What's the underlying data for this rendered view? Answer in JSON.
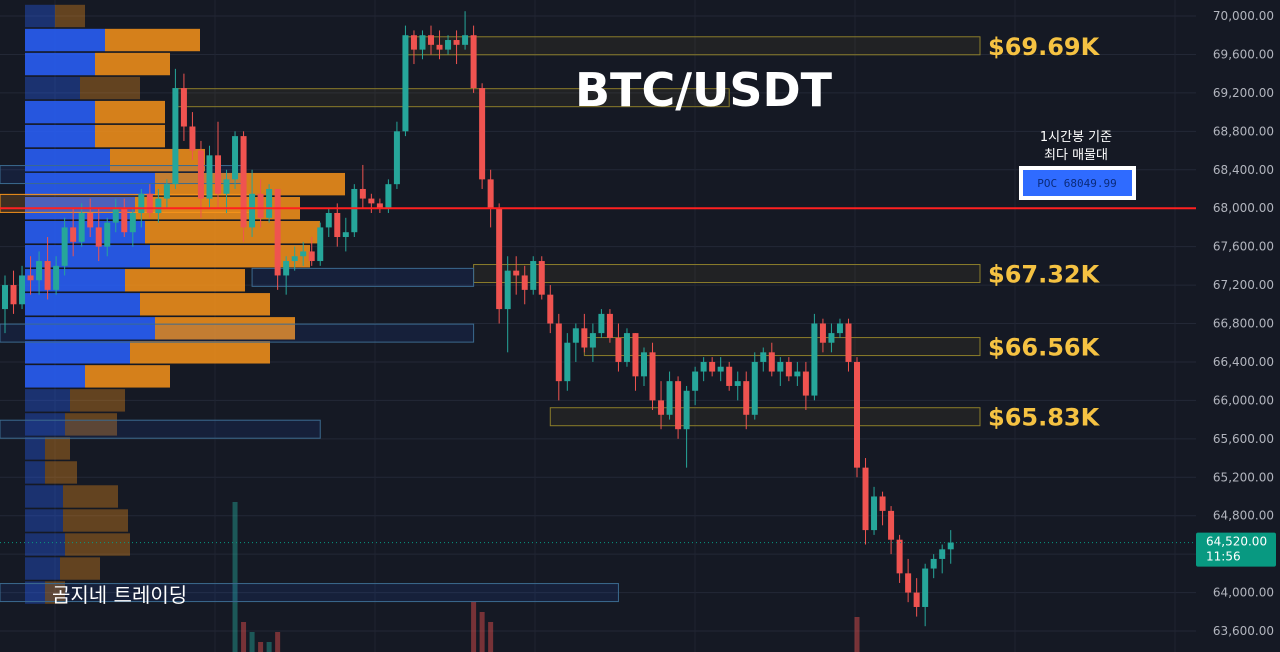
{
  "title": "BTC/USDT",
  "watermark": "곰지네 트레이딩",
  "poc": {
    "note_line1": "1시간봉 기준",
    "note_line2": "최다 매물대",
    "label": "POC  68049.99",
    "price": 68000,
    "line_color": "#ff2020"
  },
  "last_price": {
    "price": 64520,
    "label": "64,520.00",
    "countdown": "11:56",
    "color": "#089981"
  },
  "colors": {
    "background": "#151924",
    "up": "#26a69a",
    "down": "#ef5350",
    "zone_label": "#f5c242",
    "vp_buy": "#2962ff",
    "vp_sell": "#f7931a"
  },
  "zones": [
    {
      "label": "$69.69K",
      "price": 69690
    },
    {
      "label": "$67.32K",
      "price": 67320
    },
    {
      "label": "$66.56K",
      "price": 66560
    },
    {
      "label": "$65.83K",
      "price": 65830
    }
  ],
  "y_axis": {
    "ticks": [
      "70,000.00",
      "69,600.00",
      "69,200.00",
      "68,800.00",
      "68,400.00",
      "68,000.00",
      "67,600.00",
      "67,200.00",
      "66,800.00",
      "66,400.00",
      "66,000.00",
      "65,600.00",
      "65,200.00",
      "64,800.00",
      "64,400.00",
      "64,000.00",
      "63,600.00"
    ]
  },
  "chart_data": {
    "type": "candlestick",
    "title": "BTC/USDT",
    "timeframe": "1시간봉",
    "ylim": [
      63500,
      70150
    ],
    "y_ticks": [
      70000,
      69600,
      69200,
      68800,
      68400,
      68000,
      67600,
      67200,
      66800,
      66400,
      66000,
      65600,
      65200,
      64800,
      64400,
      64000,
      63600
    ],
    "candles": [
      [
        66950,
        67300,
        66700,
        67200
      ],
      [
        67200,
        67350,
        66900,
        67000
      ],
      [
        67000,
        67400,
        66950,
        67300
      ],
      [
        67300,
        67500,
        67100,
        67250
      ],
      [
        67250,
        67550,
        67100,
        67450
      ],
      [
        67450,
        67700,
        67050,
        67150
      ],
      [
        67150,
        67500,
        67100,
        67400
      ],
      [
        67400,
        67900,
        67300,
        67800
      ],
      [
        67800,
        68000,
        67500,
        67650
      ],
      [
        67650,
        68050,
        67600,
        67950
      ],
      [
        67950,
        68100,
        67700,
        67800
      ],
      [
        67800,
        68000,
        67450,
        67600
      ],
      [
        67600,
        67900,
        67500,
        67850
      ],
      [
        67850,
        68100,
        67750,
        68000
      ],
      [
        68000,
        68100,
        67700,
        67750
      ],
      [
        67750,
        68000,
        67600,
        67950
      ],
      [
        67950,
        68200,
        67800,
        68150
      ],
      [
        68150,
        68250,
        67900,
        67950
      ],
      [
        67950,
        68200,
        67850,
        68100
      ],
      [
        68100,
        68300,
        68000,
        68250
      ],
      [
        68250,
        69450,
        68200,
        69250
      ],
      [
        69250,
        69400,
        68700,
        68850
      ],
      [
        68850,
        69000,
        68500,
        68600
      ],
      [
        68600,
        68700,
        67900,
        68100
      ],
      [
        68100,
        68650,
        68000,
        68550
      ],
      [
        68550,
        68900,
        68000,
        68150
      ],
      [
        68150,
        68400,
        67950,
        68300
      ],
      [
        68300,
        68800,
        68200,
        68750
      ],
      [
        68750,
        68800,
        67650,
        67800
      ],
      [
        67800,
        68400,
        67700,
        68150
      ],
      [
        68150,
        68300,
        67800,
        67900
      ],
      [
        67900,
        68250,
        67850,
        68200
      ],
      [
        68200,
        68200,
        67150,
        67300
      ],
      [
        67300,
        67500,
        67100,
        67450
      ],
      [
        67450,
        67600,
        67350,
        67500
      ],
      [
        67500,
        67650,
        67400,
        67550
      ],
      [
        67550,
        67700,
        67400,
        67450
      ],
      [
        67450,
        67850,
        67400,
        67800
      ],
      [
        67800,
        68000,
        67700,
        67950
      ],
      [
        67950,
        68050,
        67600,
        67700
      ],
      [
        67700,
        67900,
        67550,
        67750
      ],
      [
        67750,
        68250,
        67700,
        68200
      ],
      [
        68200,
        68450,
        68000,
        68100
      ],
      [
        68100,
        68150,
        67950,
        68050
      ],
      [
        68050,
        68100,
        67950,
        68000
      ],
      [
        68000,
        68300,
        67950,
        68250
      ],
      [
        68250,
        68900,
        68200,
        68800
      ],
      [
        68800,
        69900,
        68750,
        69800
      ],
      [
        69800,
        69850,
        69500,
        69650
      ],
      [
        69650,
        69850,
        69550,
        69800
      ],
      [
        69800,
        69900,
        69600,
        69700
      ],
      [
        69700,
        69850,
        69550,
        69650
      ],
      [
        69650,
        69800,
        69600,
        69750
      ],
      [
        69750,
        69850,
        69500,
        69700
      ],
      [
        69700,
        70050,
        69650,
        69800
      ],
      [
        69800,
        69900,
        69200,
        69250
      ],
      [
        69250,
        69300,
        68200,
        68300
      ],
      [
        68300,
        68400,
        67800,
        68000
      ],
      [
        68000,
        68050,
        66800,
        66950
      ],
      [
        66950,
        67500,
        66500,
        67350
      ],
      [
        67350,
        67500,
        67100,
        67300
      ],
      [
        67300,
        67400,
        67000,
        67150
      ],
      [
        67150,
        67500,
        67100,
        67450
      ],
      [
        67450,
        67500,
        67050,
        67100
      ],
      [
        67100,
        67200,
        66700,
        66800
      ],
      [
        66800,
        66900,
        66000,
        66200
      ],
      [
        66200,
        66700,
        66100,
        66600
      ],
      [
        66600,
        66800,
        66400,
        66750
      ],
      [
        66750,
        66900,
        66500,
        66550
      ],
      [
        66550,
        66800,
        66400,
        66700
      ],
      [
        66700,
        66950,
        66650,
        66900
      ],
      [
        66900,
        66950,
        66600,
        66650
      ],
      [
        66650,
        66800,
        66300,
        66400
      ],
      [
        66400,
        66750,
        66350,
        66700
      ],
      [
        66700,
        66700,
        66100,
        66250
      ],
      [
        66250,
        66550,
        66150,
        66500
      ],
      [
        66500,
        66600,
        65900,
        66000
      ],
      [
        66000,
        66200,
        65700,
        65850
      ],
      [
        65850,
        66300,
        65800,
        66200
      ],
      [
        66200,
        66250,
        65600,
        65700
      ],
      [
        65700,
        66150,
        65300,
        66100
      ],
      [
        66100,
        66350,
        65950,
        66300
      ],
      [
        66300,
        66450,
        66200,
        66400
      ],
      [
        66400,
        66450,
        66250,
        66300
      ],
      [
        66300,
        66450,
        66200,
        66350
      ],
      [
        66350,
        66400,
        66100,
        66150
      ],
      [
        66150,
        66300,
        66000,
        66200
      ],
      [
        66200,
        66300,
        65700,
        65850
      ],
      [
        65850,
        66500,
        65800,
        66400
      ],
      [
        66400,
        66550,
        66300,
        66500
      ],
      [
        66500,
        66600,
        66250,
        66300
      ],
      [
        66300,
        66450,
        66150,
        66400
      ],
      [
        66400,
        66450,
        66200,
        66250
      ],
      [
        66250,
        66400,
        66150,
        66300
      ],
      [
        66300,
        66400,
        65900,
        66050
      ],
      [
        66050,
        66900,
        66000,
        66800
      ],
      [
        66800,
        66850,
        66500,
        66600
      ],
      [
        66600,
        66800,
        66500,
        66700
      ],
      [
        66700,
        66850,
        66650,
        66800
      ],
      [
        66800,
        66850,
        66300,
        66400
      ],
      [
        66400,
        66450,
        65200,
        65300
      ],
      [
        65300,
        65400,
        64500,
        64650
      ],
      [
        64650,
        65100,
        64600,
        65000
      ],
      [
        65000,
        65050,
        64700,
        64850
      ],
      [
        64850,
        64900,
        64400,
        64550
      ],
      [
        64550,
        64600,
        64100,
        64200
      ],
      [
        64200,
        64350,
        63900,
        64000
      ],
      [
        64000,
        64150,
        63750,
        63850
      ],
      [
        63850,
        64300,
        63650,
        64250
      ],
      [
        64250,
        64400,
        64150,
        64350
      ],
      [
        64350,
        64500,
        64200,
        64450
      ],
      [
        64450,
        64650,
        64300,
        64520
      ]
    ],
    "volume_profile": [
      {
        "price": 70000,
        "buy": 30,
        "sell": 30
      },
      {
        "price": 69750,
        "buy": 80,
        "sell": 95
      },
      {
        "price": 69500,
        "buy": 70,
        "sell": 75
      },
      {
        "price": 69250,
        "buy": 55,
        "sell": 60
      },
      {
        "price": 69000,
        "buy": 70,
        "sell": 70
      },
      {
        "price": 68750,
        "buy": 70,
        "sell": 70
      },
      {
        "price": 68500,
        "buy": 85,
        "sell": 95
      },
      {
        "price": 68250,
        "buy": 130,
        "sell": 190
      },
      {
        "price": 68000,
        "buy": 110,
        "sell": 165
      },
      {
        "price": 67750,
        "buy": 120,
        "sell": 175
      },
      {
        "price": 67500,
        "buy": 125,
        "sell": 160
      },
      {
        "price": 67250,
        "buy": 100,
        "sell": 120
      },
      {
        "price": 67000,
        "buy": 115,
        "sell": 130
      },
      {
        "price": 66750,
        "buy": 130,
        "sell": 140
      },
      {
        "price": 66500,
        "buy": 105,
        "sell": 140
      },
      {
        "price": 66250,
        "buy": 60,
        "sell": 85
      },
      {
        "price": 66000,
        "buy": 45,
        "sell": 55
      },
      {
        "price": 65750,
        "buy": 40,
        "sell": 52
      },
      {
        "price": 65500,
        "buy": 20,
        "sell": 25
      },
      {
        "price": 65250,
        "buy": 20,
        "sell": 32
      },
      {
        "price": 65000,
        "buy": 38,
        "sell": 55
      },
      {
        "price": 64750,
        "buy": 38,
        "sell": 65
      },
      {
        "price": 64500,
        "buy": 40,
        "sell": 65
      },
      {
        "price": 64250,
        "buy": 35,
        "sell": 40
      },
      {
        "price": 64000,
        "buy": 20,
        "sell": 20
      }
    ],
    "volume_bars": [
      0,
      0,
      0,
      0,
      0,
      0,
      0,
      0,
      0,
      0,
      0,
      0,
      0,
      0,
      0,
      0,
      0,
      0,
      0,
      0,
      0,
      0,
      0,
      0,
      0,
      0,
      0,
      150,
      30,
      20,
      10,
      10,
      20,
      0,
      0,
      0,
      0,
      0,
      0,
      0,
      0,
      0,
      0,
      0,
      0,
      0,
      0,
      0,
      0,
      0,
      0,
      0,
      0,
      0,
      0,
      50,
      40,
      30,
      0,
      0,
      0,
      0,
      0,
      0,
      0,
      0,
      0,
      0,
      0,
      0,
      0,
      0,
      0,
      0,
      0,
      0,
      0,
      0,
      0,
      0,
      0,
      0,
      0,
      0,
      0,
      0,
      0,
      0,
      0,
      0,
      0,
      0,
      0,
      0,
      0,
      0,
      0,
      0,
      0,
      0,
      35,
      0,
      0,
      0,
      0,
      0,
      0,
      0,
      0,
      0,
      0,
      0
    ],
    "horizontal_boxes": [
      {
        "price": 69690,
        "from": 47,
        "to": "axis",
        "kind": "resistance"
      },
      {
        "price": 69150,
        "from": 20,
        "to": 85,
        "kind": "resistance"
      },
      {
        "price": 68350,
        "from": -1,
        "to": 28,
        "kind": "neutral"
      },
      {
        "price": 68050,
        "from": -1,
        "to": 29,
        "kind": "poc-zone"
      },
      {
        "price": 67320,
        "from": 55,
        "to": "axis",
        "kind": "resistance"
      },
      {
        "price": 67280,
        "from": 29,
        "to": 55,
        "kind": "neutral"
      },
      {
        "price": 66560,
        "from": 68,
        "to": "axis",
        "kind": "resistance"
      },
      {
        "price": 66700,
        "from": -1,
        "to": 55,
        "kind": "neutral"
      },
      {
        "price": 65830,
        "from": 64,
        "to": "axis",
        "kind": "resistance"
      },
      {
        "price": 65700,
        "from": -1,
        "to": 37,
        "kind": "neutral"
      },
      {
        "price": 64000,
        "from": -1,
        "to": 72,
        "kind": "neutral"
      }
    ]
  }
}
